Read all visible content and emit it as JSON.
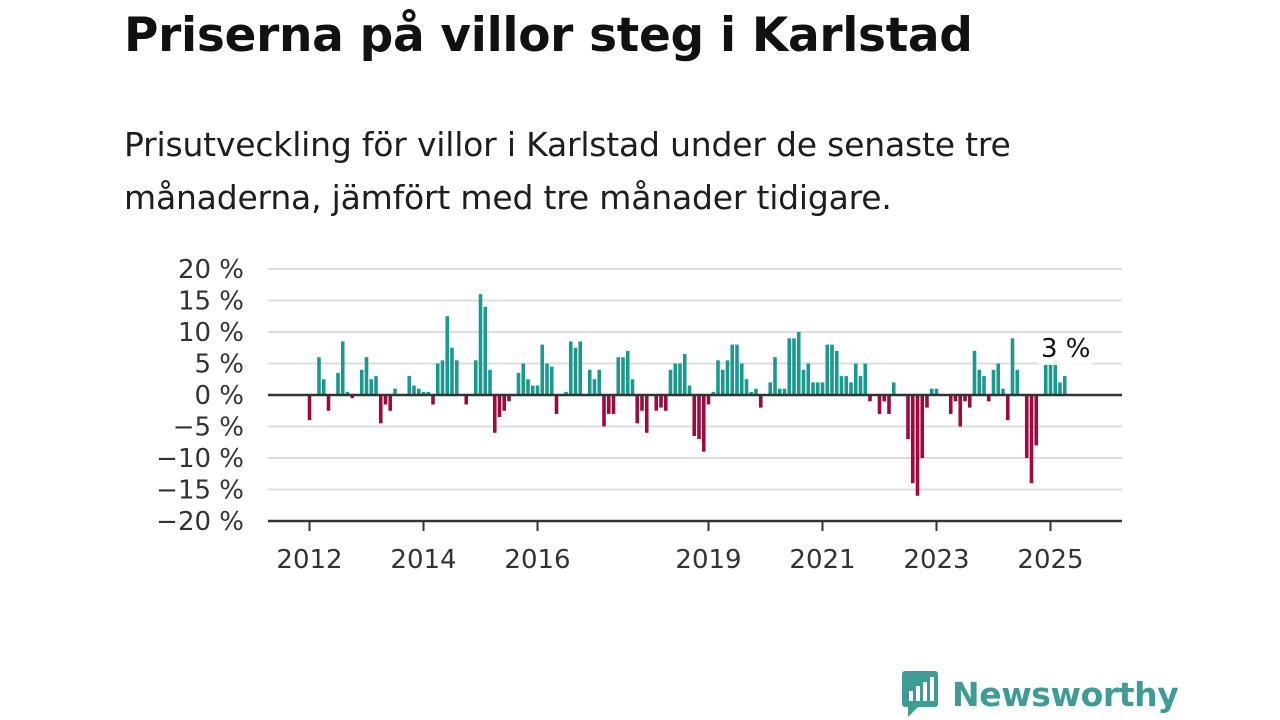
{
  "title": "Priserna på villor steg i Karlstad",
  "subtitle": "Prisutveckling för villor i Karlstad under de senaste tre månaderna, jämfört med tre månader tidigare.",
  "brand": "Newsworthy",
  "colors": {
    "positive": "#1a9a8e",
    "negative": "#a0093f",
    "grid": "#dddddd",
    "axis": "#333333",
    "brand": "#3d9c93"
  },
  "chart_data": {
    "type": "bar",
    "ylim": [
      -20,
      20
    ],
    "y_ticks": [
      {
        "value": 20,
        "label": "20 %"
      },
      {
        "value": 15,
        "label": "15 %"
      },
      {
        "value": 10,
        "label": "10 %"
      },
      {
        "value": 5,
        "label": "5 %"
      },
      {
        "value": 0,
        "label": "0 %"
      },
      {
        "value": -5,
        "label": "−5 %"
      },
      {
        "value": -10,
        "label": "−10 %"
      },
      {
        "value": -15,
        "label": "−15 %"
      },
      {
        "value": -20,
        "label": "−20 %"
      }
    ],
    "x_ticks": [
      {
        "index": 0,
        "label": "2012"
      },
      {
        "index": 24,
        "label": "2014"
      },
      {
        "index": 48,
        "label": "2016"
      },
      {
        "index": 84,
        "label": "2019"
      },
      {
        "index": 108,
        "label": "2021"
      },
      {
        "index": 132,
        "label": "2023"
      },
      {
        "index": 156,
        "label": "2025"
      }
    ],
    "grid": true,
    "values": [
      -4,
      0,
      6,
      2.5,
      -2.5,
      0,
      3.5,
      8.5,
      0.5,
      -0.5,
      0,
      4,
      6,
      2.5,
      3,
      -4.5,
      -1.5,
      -2.5,
      1,
      0,
      0,
      3,
      1.5,
      1,
      0.5,
      0.5,
      -1.5,
      5,
      5.5,
      12.5,
      7.5,
      5.5,
      0,
      -1.5,
      0,
      5.5,
      16,
      14,
      4,
      -6,
      -3.5,
      -2.5,
      -1,
      0,
      3.5,
      5,
      2.5,
      1.5,
      1.5,
      8,
      5,
      4.5,
      -3,
      0,
      0.5,
      8.5,
      7.5,
      8.5,
      0,
      4,
      2.5,
      4,
      -5,
      -3,
      -3,
      6,
      6,
      7,
      2.5,
      -4.5,
      -2.5,
      -6,
      0,
      -2.5,
      -2,
      -2.5,
      4,
      5,
      5,
      6.5,
      1.5,
      -6.5,
      -7,
      -9,
      -1.5,
      0.5,
      5.5,
      4,
      5.5,
      8,
      8,
      5,
      2.5,
      0.5,
      1,
      -2,
      0,
      2,
      6,
      1,
      1,
      9,
      9,
      10,
      4,
      5,
      2,
      2,
      2,
      8,
      8,
      7,
      3,
      3,
      2,
      5,
      3,
      5,
      -1,
      0,
      -3,
      -1,
      -3,
      2,
      0,
      0,
      -7,
      -14,
      -16,
      -10,
      -2,
      1,
      1,
      0,
      0,
      -3,
      -1,
      -5,
      -1,
      -2,
      7,
      4,
      3,
      -1,
      4,
      5,
      1,
      -4,
      9,
      4,
      0,
      -10,
      -14,
      -8,
      0,
      5,
      5,
      5.5,
      2,
      3
    ],
    "last_value_label": "3 %"
  }
}
